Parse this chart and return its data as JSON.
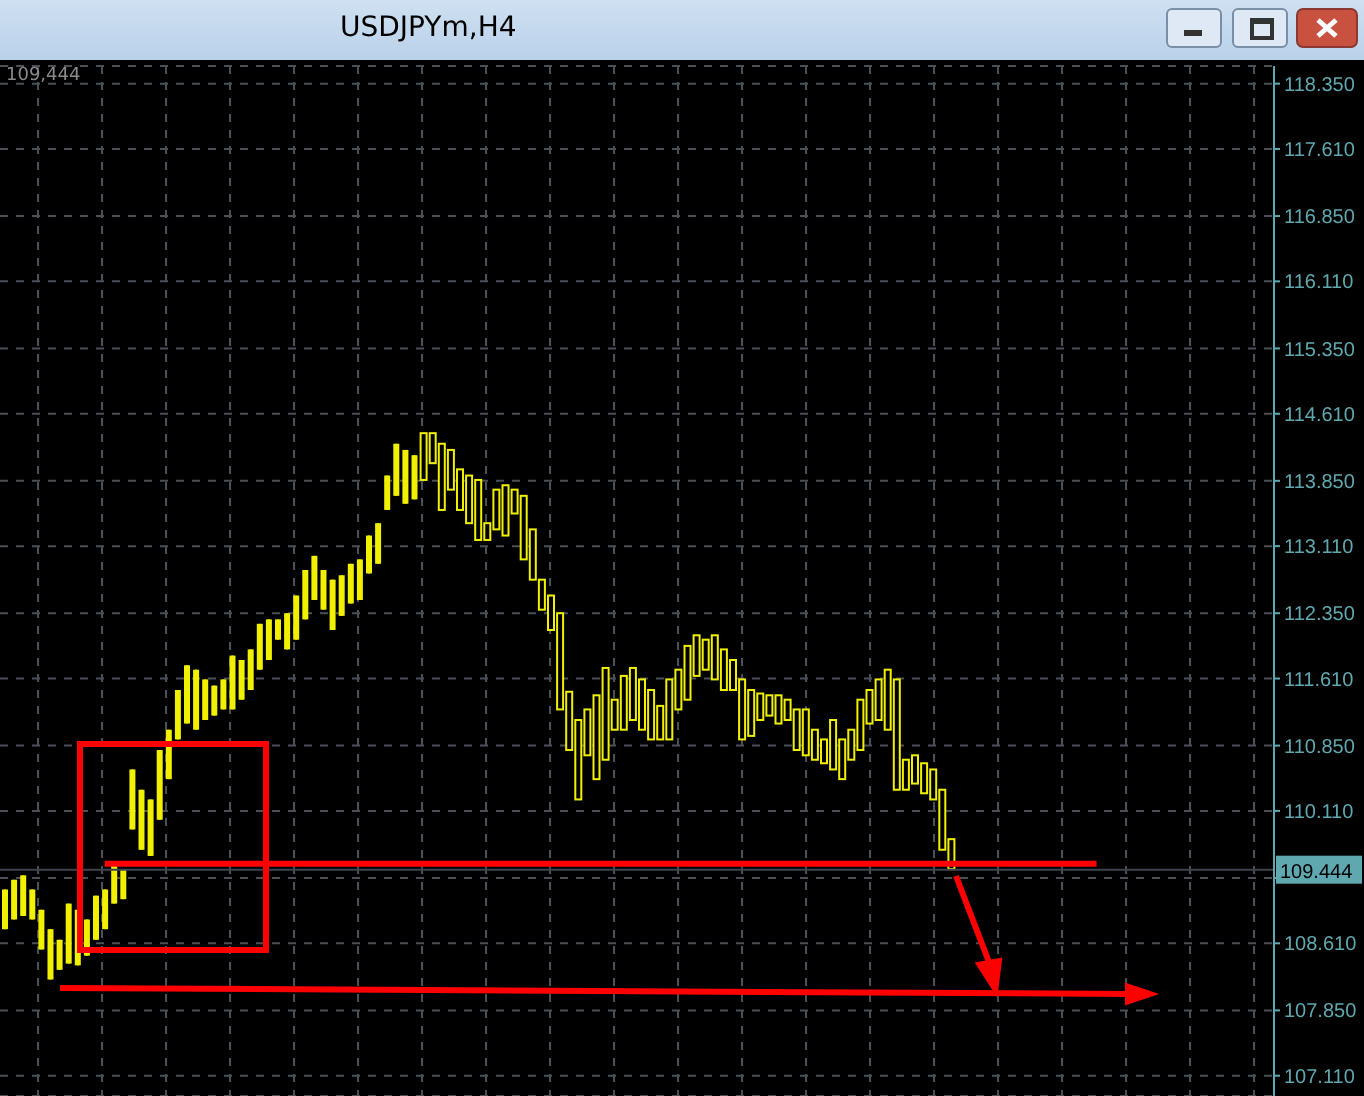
{
  "chart_data": {
    "type": "candlestick",
    "title": "USDJPYm,H4",
    "annotations": [
      "109,444"
    ],
    "tick_labels": "y",
    "grid": true,
    "color": "#f0f000",
    "categories": [
      null,
      null,
      null,
      null,
      null,
      null,
      null,
      null,
      null,
      null,
      null,
      null,
      null,
      null,
      null,
      null,
      null,
      null,
      null,
      null,
      null,
      null,
      null,
      null,
      null,
      null,
      null,
      null,
      null,
      null,
      null,
      null,
      null,
      null,
      null,
      null,
      null,
      null,
      null,
      null,
      null,
      null,
      null,
      null,
      null,
      null,
      null,
      null,
      null,
      null,
      null,
      null,
      null,
      null,
      null,
      null,
      null,
      null,
      null,
      null,
      null,
      null,
      null,
      null,
      null,
      null,
      null,
      null,
      null,
      null,
      null,
      null,
      null,
      null,
      null,
      null,
      null,
      null,
      null,
      null,
      null,
      null,
      null,
      null,
      null,
      null,
      null,
      null,
      null,
      null,
      null,
      null,
      null,
      null,
      null,
      null,
      null,
      null,
      null,
      null,
      null,
      null,
      null,
      null,
      null,
      null,
      null,
      null,
      null,
      null,
      null,
      null,
      null,
      null,
      null,
      null,
      null,
      null,
      null,
      null,
      null,
      null,
      null,
      null,
      null,
      null,
      null,
      null,
      null,
      null,
      null,
      null,
      null,
      null,
      null,
      null,
      null,
      null,
      null,
      null
    ],
    "ohlc": [
      [
        108.77,
        109.22,
        108.77,
        109.22
      ],
      [
        108.88,
        109.33,
        108.88,
        109.33
      ],
      [
        108.92,
        109.38,
        108.92,
        109.38
      ],
      [
        108.88,
        109.22,
        108.88,
        109.22
      ],
      [
        108.54,
        108.99,
        108.54,
        108.99
      ],
      [
        108.2,
        108.77,
        108.2,
        108.77
      ],
      [
        108.31,
        108.65,
        108.31,
        108.65
      ],
      [
        108.38,
        109.06,
        108.38,
        109.06
      ],
      [
        108.36,
        108.99,
        108.36,
        108.99
      ],
      [
        108.47,
        108.88,
        108.47,
        108.88
      ],
      [
        108.65,
        109.15,
        108.65,
        109.15
      ],
      [
        108.77,
        109.22,
        108.77,
        109.22
      ],
      [
        109.06,
        109.51,
        109.06,
        109.51
      ],
      [
        109.11,
        109.45,
        109.11,
        109.45
      ],
      [
        109.9,
        110.58,
        109.9,
        110.58
      ],
      [
        109.67,
        110.35,
        109.67,
        110.35
      ],
      [
        109.6,
        110.24,
        109.6,
        110.24
      ],
      [
        110.01,
        110.8,
        110.01,
        110.8
      ],
      [
        110.47,
        111.03,
        110.47,
        111.03
      ],
      [
        110.92,
        111.48,
        110.92,
        111.48
      ],
      [
        111.1,
        111.76,
        111.1,
        111.76
      ],
      [
        111.03,
        111.71,
        111.03,
        111.71
      ],
      [
        111.14,
        111.6,
        111.14,
        111.6
      ],
      [
        111.19,
        111.53,
        111.19,
        111.53
      ],
      [
        111.26,
        111.6,
        111.26,
        111.6
      ],
      [
        111.26,
        111.87,
        111.26,
        111.87
      ],
      [
        111.37,
        111.82,
        111.37,
        111.82
      ],
      [
        111.48,
        111.94,
        111.48,
        111.94
      ],
      [
        111.71,
        112.23,
        111.71,
        112.23
      ],
      [
        111.82,
        112.28,
        111.82,
        112.28
      ],
      [
        112.05,
        112.28,
        112.05,
        112.28
      ],
      [
        111.94,
        112.35,
        111.94,
        112.35
      ],
      [
        112.05,
        112.55,
        112.05,
        112.55
      ],
      [
        112.28,
        112.84,
        112.28,
        112.84
      ],
      [
        112.5,
        113.0,
        112.5,
        113.0
      ],
      [
        112.39,
        112.84,
        112.39,
        112.84
      ],
      [
        112.16,
        112.73,
        112.16,
        112.73
      ],
      [
        112.32,
        112.78,
        112.32,
        112.78
      ],
      [
        112.46,
        112.91,
        112.46,
        112.91
      ],
      [
        112.5,
        112.96,
        112.5,
        112.96
      ],
      [
        112.8,
        113.23,
        112.8,
        113.23
      ],
      [
        112.91,
        113.37,
        112.91,
        113.37
      ],
      [
        113.52,
        113.91,
        113.52,
        113.91
      ],
      [
        113.68,
        114.27,
        113.68,
        114.27
      ],
      [
        113.59,
        114.2,
        113.59,
        114.2
      ],
      [
        113.64,
        114.14,
        113.64,
        114.14
      ],
      [
        114.39,
        114.39,
        113.86,
        113.86
      ],
      [
        114.39,
        114.39,
        114.05,
        114.05
      ],
      [
        114.27,
        114.27,
        113.52,
        113.52
      ],
      [
        114.2,
        114.2,
        113.75,
        113.75
      ],
      [
        113.98,
        113.98,
        113.52,
        113.52
      ],
      [
        113.91,
        113.91,
        113.37,
        113.37
      ],
      [
        113.86,
        113.86,
        113.18,
        113.18
      ],
      [
        113.37,
        113.37,
        113.18,
        113.18
      ],
      [
        113.75,
        113.75,
        113.3,
        113.3
      ],
      [
        113.8,
        113.8,
        113.23,
        113.23
      ],
      [
        113.75,
        113.75,
        113.48,
        113.48
      ],
      [
        113.68,
        113.68,
        112.96,
        112.96
      ],
      [
        113.3,
        113.3,
        112.73,
        112.73
      ],
      [
        112.73,
        112.73,
        112.39,
        112.39
      ],
      [
        112.55,
        112.55,
        112.16,
        112.16
      ],
      [
        112.35,
        112.35,
        111.26,
        111.26
      ],
      [
        111.46,
        111.46,
        110.8,
        110.8
      ],
      [
        111.14,
        111.14,
        110.24,
        110.24
      ],
      [
        111.26,
        111.26,
        110.74,
        110.74
      ],
      [
        111.42,
        111.42,
        110.47,
        110.47
      ],
      [
        111.73,
        111.73,
        110.69,
        110.69
      ],
      [
        111.37,
        111.37,
        111.03,
        111.03
      ],
      [
        111.64,
        111.64,
        111.03,
        111.03
      ],
      [
        111.73,
        111.73,
        111.14,
        111.14
      ],
      [
        111.6,
        111.6,
        111.03,
        111.03
      ],
      [
        111.48,
        111.48,
        110.92,
        110.92
      ],
      [
        111.3,
        111.3,
        110.92,
        110.92
      ],
      [
        111.6,
        111.6,
        110.92,
        110.92
      ],
      [
        111.71,
        111.71,
        111.26,
        111.26
      ],
      [
        111.98,
        111.98,
        111.37,
        111.37
      ],
      [
        112.1,
        112.1,
        111.64,
        111.64
      ],
      [
        112.05,
        112.05,
        111.71,
        111.71
      ],
      [
        112.1,
        112.1,
        111.6,
        111.6
      ],
      [
        111.94,
        111.94,
        111.48,
        111.48
      ],
      [
        111.82,
        111.82,
        111.48,
        111.48
      ],
      [
        111.6,
        111.6,
        110.92,
        110.92
      ],
      [
        111.48,
        111.48,
        110.96,
        110.96
      ],
      [
        111.44,
        111.44,
        111.14,
        111.14
      ],
      [
        111.42,
        111.42,
        111.19,
        111.19
      ],
      [
        111.42,
        111.42,
        111.1,
        111.1
      ],
      [
        111.37,
        111.37,
        111.14,
        111.14
      ],
      [
        111.26,
        111.26,
        110.8,
        110.8
      ],
      [
        111.26,
        111.26,
        110.74,
        110.74
      ],
      [
        111.03,
        111.03,
        110.69,
        110.69
      ],
      [
        110.92,
        110.92,
        110.65,
        110.65
      ],
      [
        111.14,
        111.14,
        110.58,
        110.58
      ],
      [
        110.92,
        110.92,
        110.47,
        110.47
      ],
      [
        111.03,
        111.03,
        110.69,
        110.69
      ],
      [
        111.37,
        111.37,
        110.8,
        110.8
      ],
      [
        111.48,
        111.48,
        111.1,
        111.1
      ],
      [
        111.6,
        111.6,
        111.14,
        111.14
      ],
      [
        111.71,
        111.71,
        111.03,
        111.03
      ],
      [
        111.6,
        111.6,
        110.35,
        110.35
      ],
      [
        110.69,
        110.69,
        110.35,
        110.35
      ],
      [
        110.74,
        110.74,
        110.42,
        110.42
      ],
      [
        110.65,
        110.65,
        110.31,
        110.31
      ],
      [
        110.58,
        110.58,
        110.24,
        110.24
      ],
      [
        110.35,
        110.35,
        109.67,
        109.67
      ],
      [
        109.79,
        109.79,
        109.45,
        109.45
      ],
      null,
      null,
      null,
      null,
      null,
      null,
      null,
      null,
      null,
      null,
      null,
      null,
      null,
      null,
      null,
      null,
      null,
      null,
      null,
      null,
      null,
      null,
      null,
      null,
      null,
      null,
      null,
      null,
      null,
      null,
      null,
      null,
      null,
      null,
      null
    ],
    "ylim": [
      106.88,
      118.55
    ],
    "yticks": [
      {
        "value": 118.35,
        "label": "118.350"
      },
      {
        "value": 117.61,
        "label": "117.610"
      },
      {
        "value": 116.85,
        "label": "116.850"
      },
      {
        "value": 116.11,
        "label": "116.110"
      },
      {
        "value": 115.35,
        "label": "115.350"
      },
      {
        "value": 114.61,
        "label": "114.610"
      },
      {
        "value": 113.85,
        "label": "113.850"
      },
      {
        "value": 113.11,
        "label": "113.110"
      },
      {
        "value": 112.35,
        "label": "112.350"
      },
      {
        "value": 111.61,
        "label": "111.610"
      },
      {
        "value": 110.85,
        "label": "110.850"
      },
      {
        "value": 110.11,
        "label": "110.110"
      },
      {
        "value": 109.35,
        "label": null
      },
      {
        "value": 108.61,
        "label": "108.610"
      },
      {
        "value": 107.85,
        "label": "107.850"
      },
      {
        "value": 107.11,
        "label": "107.110"
      }
    ],
    "ref_lines": [
      {
        "axis": "y",
        "value": 109.444,
        "label": "109.444",
        "color": "#3c4650"
      },
      {
        "axis": "y",
        "value": 109.51,
        "color": "#ff0000"
      }
    ]
  }
}
